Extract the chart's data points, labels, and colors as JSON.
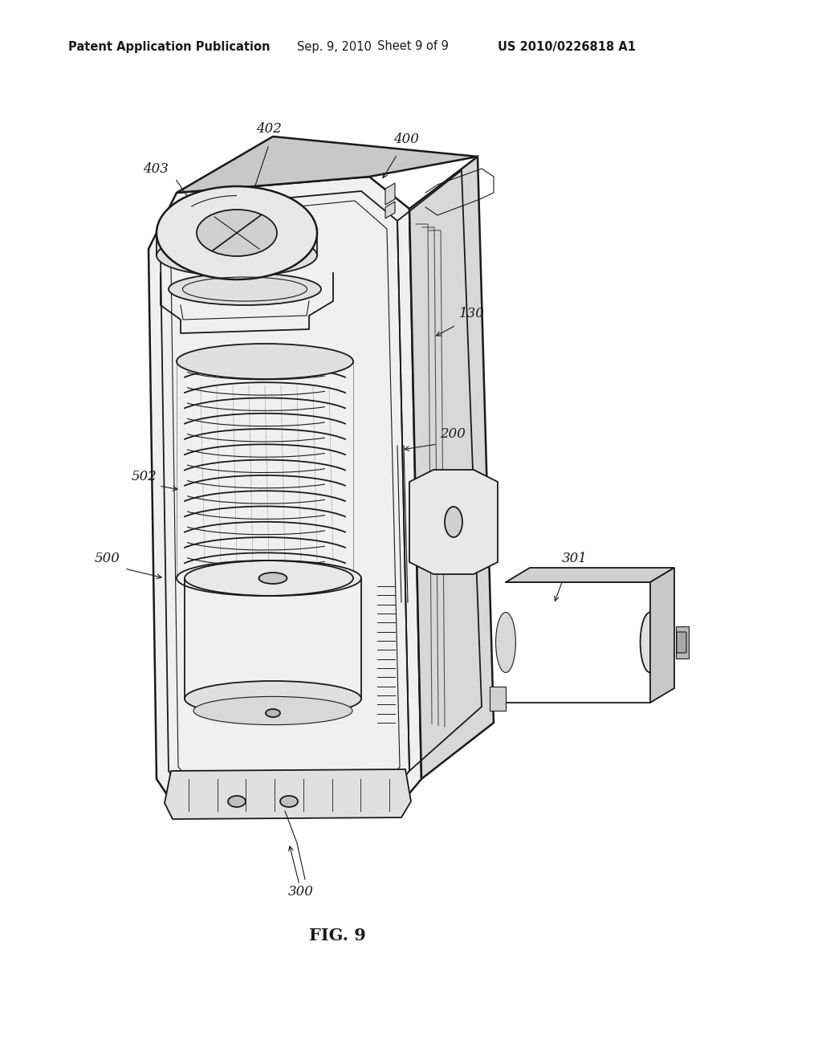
{
  "header_left": "Patent Application Publication",
  "header_center": "Sep. 9, 2010   Sheet 9 of 9",
  "header_right": "US 2010/0226818 A1",
  "figure_label": "FIG. 9",
  "background_color": "#ffffff",
  "text_color": "#000000",
  "header_fontsize": 10.5,
  "figure_label_fontsize": 15,
  "annotation_fontsize": 12,
  "line_color": "#1a1a1a",
  "gray_light": "#e8e8e8",
  "gray_mid": "#d0d0d0",
  "gray_dark": "#b0b0b0"
}
